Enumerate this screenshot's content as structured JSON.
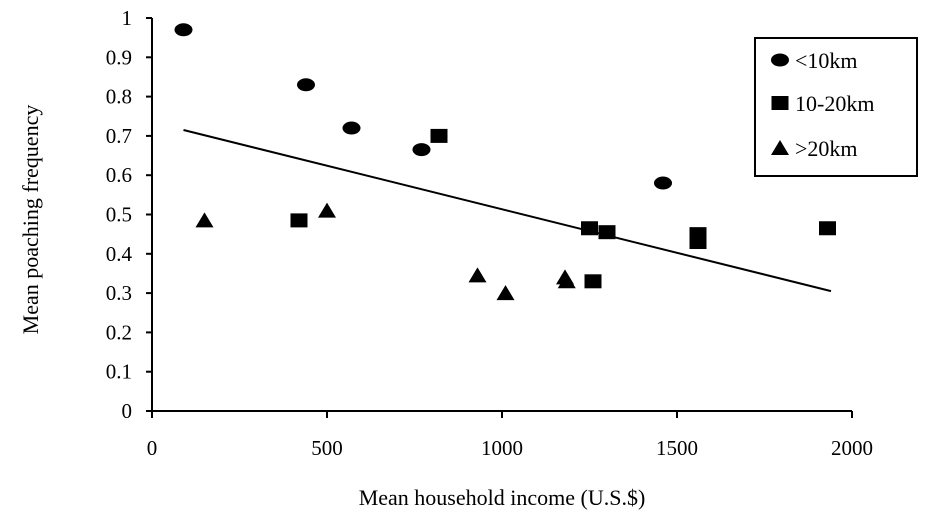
{
  "chart_data": {
    "type": "scatter",
    "title": "",
    "xlabel": "Mean household income (U.S.$)",
    "ylabel": "Mean poaching frequency",
    "xlim": [
      0,
      2000
    ],
    "ylim": [
      0,
      1
    ],
    "x_ticks": [
      0,
      500,
      1000,
      1500,
      2000
    ],
    "y_ticks": [
      0,
      0.1,
      0.2,
      0.3,
      0.4,
      0.5,
      0.6,
      0.7,
      0.8,
      0.9,
      1
    ],
    "x_tick_labels": [
      "0",
      "500",
      "1000",
      "1500",
      "2000"
    ],
    "y_tick_labels": [
      "0",
      "0.1",
      "0.2",
      "0.3",
      "0.4",
      "0.5",
      "0.6",
      "0.7",
      "0.8",
      "0.9",
      "1"
    ],
    "grid": false,
    "legend_position": "top-right",
    "series": [
      {
        "name": "<10km",
        "marker": "circle",
        "points": [
          {
            "x": 90,
            "y": 0.97
          },
          {
            "x": 440,
            "y": 0.83
          },
          {
            "x": 570,
            "y": 0.72
          },
          {
            "x": 770,
            "y": 0.665
          },
          {
            "x": 1460,
            "y": 0.58
          }
        ]
      },
      {
        "name": "10-20km",
        "marker": "square",
        "points": [
          {
            "x": 420,
            "y": 0.485
          },
          {
            "x": 820,
            "y": 0.7
          },
          {
            "x": 1250,
            "y": 0.465
          },
          {
            "x": 1260,
            "y": 0.33
          },
          {
            "x": 1300,
            "y": 0.455
          },
          {
            "x": 1560,
            "y": 0.45
          },
          {
            "x": 1560,
            "y": 0.43
          },
          {
            "x": 1930,
            "y": 0.465
          }
        ]
      },
      {
        "name": ">20km",
        "marker": "triangle",
        "points": [
          {
            "x": 150,
            "y": 0.485
          },
          {
            "x": 500,
            "y": 0.51
          },
          {
            "x": 930,
            "y": 0.345
          },
          {
            "x": 1010,
            "y": 0.3
          },
          {
            "x": 1180,
            "y": 0.34
          },
          {
            "x": 1185,
            "y": 0.33
          }
        ]
      }
    ],
    "trendline": {
      "x": [
        90,
        1940
      ],
      "y": [
        0.715,
        0.305
      ]
    }
  }
}
